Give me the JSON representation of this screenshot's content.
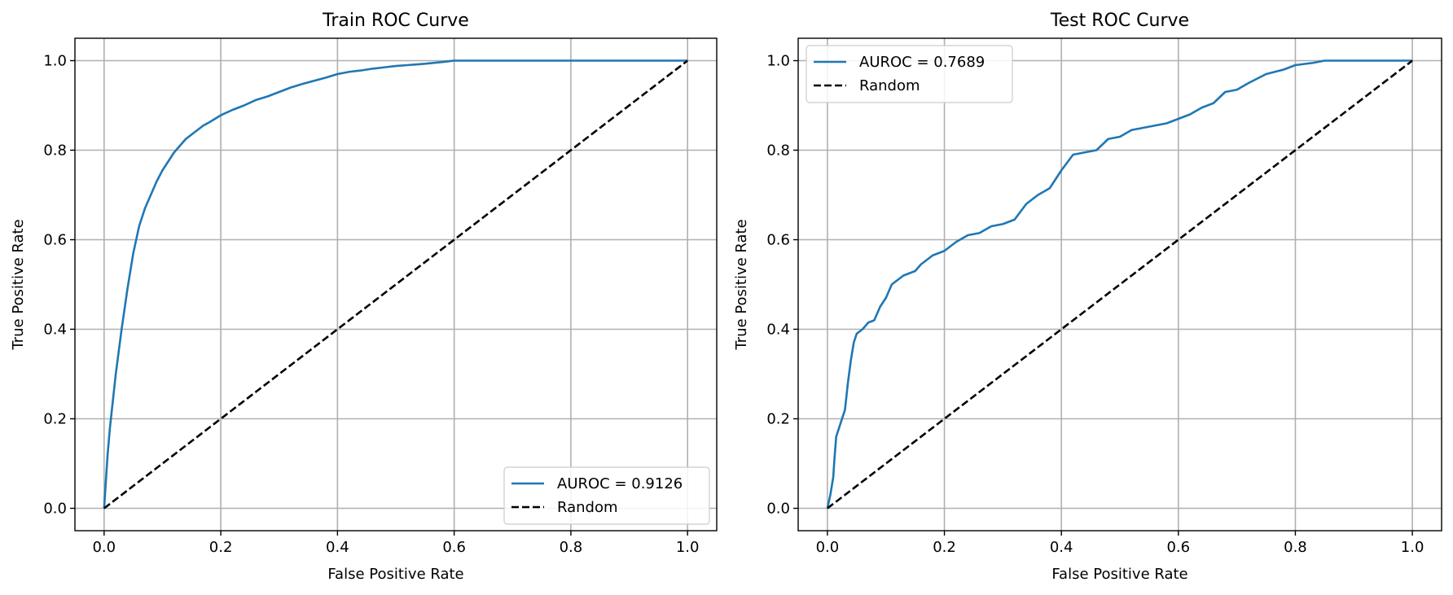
{
  "chart_data": [
    {
      "type": "line",
      "title": "Train ROC Curve",
      "xlabel": "False Positive Rate",
      "ylabel": "True Positive Rate",
      "xlim": [
        -0.05,
        1.05
      ],
      "ylim": [
        -0.05,
        1.05
      ],
      "xticks": [
        0.0,
        0.2,
        0.4,
        0.6,
        0.8,
        1.0
      ],
      "yticks": [
        0.0,
        0.2,
        0.4,
        0.6,
        0.8,
        1.0
      ],
      "xtick_labels": [
        "0.0",
        "0.2",
        "0.4",
        "0.6",
        "0.8",
        "1.0"
      ],
      "ytick_labels": [
        "0.0",
        "0.2",
        "0.4",
        "0.6",
        "0.8",
        "1.0"
      ],
      "grid": true,
      "legend_position": "lower-right",
      "series": [
        {
          "name": "AUROC = 0.9126",
          "color": "#1f77b4",
          "style": "solid",
          "x": [
            0.0,
            0.003,
            0.006,
            0.01,
            0.015,
            0.02,
            0.03,
            0.04,
            0.05,
            0.06,
            0.07,
            0.08,
            0.09,
            0.1,
            0.11,
            0.12,
            0.13,
            0.14,
            0.15,
            0.16,
            0.17,
            0.18,
            0.19,
            0.2,
            0.22,
            0.24,
            0.26,
            0.28,
            0.3,
            0.32,
            0.34,
            0.36,
            0.38,
            0.4,
            0.42,
            0.44,
            0.46,
            0.48,
            0.5,
            0.52,
            0.55,
            0.58,
            0.6,
            0.7,
            0.8,
            0.9,
            1.0
          ],
          "y": [
            0.0,
            0.06,
            0.12,
            0.18,
            0.24,
            0.3,
            0.4,
            0.49,
            0.57,
            0.63,
            0.67,
            0.7,
            0.73,
            0.755,
            0.775,
            0.795,
            0.81,
            0.825,
            0.835,
            0.845,
            0.855,
            0.862,
            0.87,
            0.878,
            0.89,
            0.9,
            0.912,
            0.92,
            0.93,
            0.94,
            0.948,
            0.955,
            0.962,
            0.97,
            0.975,
            0.978,
            0.982,
            0.985,
            0.988,
            0.99,
            0.993,
            0.997,
            1.0,
            1.0,
            1.0,
            1.0,
            1.0
          ]
        },
        {
          "name": "Random",
          "color": "#000000",
          "style": "dashed",
          "x": [
            0.0,
            1.0
          ],
          "y": [
            0.0,
            1.0
          ]
        }
      ]
    },
    {
      "type": "line",
      "title": "Test ROC Curve",
      "xlabel": "False Positive Rate",
      "ylabel": "True Positive Rate",
      "xlim": [
        -0.05,
        1.05
      ],
      "ylim": [
        -0.05,
        1.05
      ],
      "xticks": [
        0.0,
        0.2,
        0.4,
        0.6,
        0.8,
        1.0
      ],
      "yticks": [
        0.0,
        0.2,
        0.4,
        0.6,
        0.8,
        1.0
      ],
      "xtick_labels": [
        "0.0",
        "0.2",
        "0.4",
        "0.6",
        "0.8",
        "1.0"
      ],
      "ytick_labels": [
        "0.0",
        "0.2",
        "0.4",
        "0.6",
        "0.8",
        "1.0"
      ],
      "grid": true,
      "legend_position": "upper-left",
      "series": [
        {
          "name": "AUROC = 0.7689",
          "color": "#1f77b4",
          "style": "solid",
          "x": [
            0.0,
            0.005,
            0.01,
            0.012,
            0.015,
            0.02,
            0.025,
            0.03,
            0.035,
            0.04,
            0.045,
            0.05,
            0.06,
            0.07,
            0.08,
            0.09,
            0.1,
            0.11,
            0.12,
            0.13,
            0.14,
            0.15,
            0.16,
            0.17,
            0.18,
            0.2,
            0.22,
            0.24,
            0.26,
            0.28,
            0.3,
            0.32,
            0.34,
            0.36,
            0.38,
            0.4,
            0.42,
            0.44,
            0.46,
            0.48,
            0.5,
            0.52,
            0.54,
            0.56,
            0.58,
            0.6,
            0.62,
            0.64,
            0.66,
            0.68,
            0.7,
            0.72,
            0.75,
            0.78,
            0.8,
            0.83,
            0.85,
            0.9,
            1.0
          ],
          "y": [
            0.0,
            0.03,
            0.07,
            0.11,
            0.16,
            0.18,
            0.2,
            0.22,
            0.28,
            0.33,
            0.37,
            0.39,
            0.4,
            0.415,
            0.42,
            0.45,
            0.47,
            0.5,
            0.51,
            0.52,
            0.525,
            0.53,
            0.545,
            0.555,
            0.565,
            0.575,
            0.595,
            0.61,
            0.615,
            0.63,
            0.635,
            0.645,
            0.68,
            0.7,
            0.715,
            0.755,
            0.79,
            0.795,
            0.8,
            0.825,
            0.83,
            0.845,
            0.85,
            0.855,
            0.86,
            0.87,
            0.88,
            0.895,
            0.905,
            0.93,
            0.935,
            0.95,
            0.97,
            0.98,
            0.99,
            0.995,
            1.0,
            1.0,
            1.0
          ]
        },
        {
          "name": "Random",
          "color": "#000000",
          "style": "dashed",
          "x": [
            0.0,
            1.0
          ],
          "y": [
            0.0,
            1.0
          ]
        }
      ]
    }
  ]
}
